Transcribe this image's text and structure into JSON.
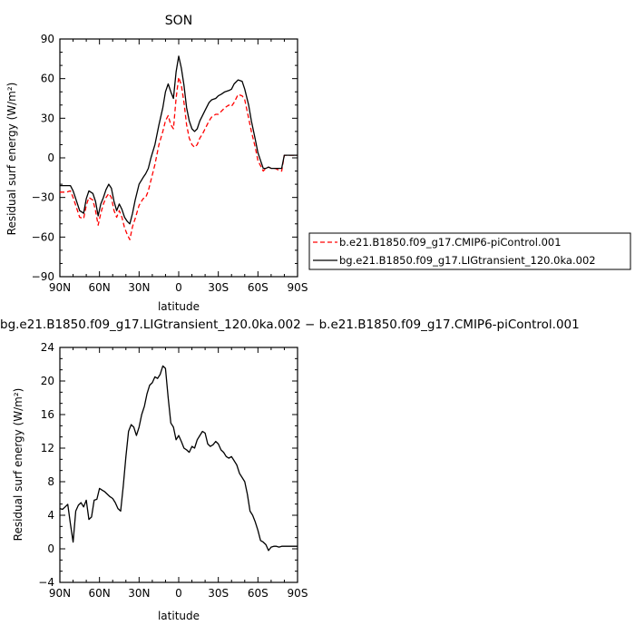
{
  "chart_data": [
    {
      "type": "line",
      "title": "SON",
      "xlabel": "latitude",
      "ylabel": "Residual surf energy (W/m²)",
      "xlim": [
        90,
        -90
      ],
      "ylim": [
        -90,
        90
      ],
      "xticks": [
        90,
        60,
        30,
        0,
        -30,
        -60,
        -90
      ],
      "xtick_labels": [
        "90N",
        "60N",
        "30N",
        "0",
        "30S",
        "60S",
        "90S"
      ],
      "yticks": [
        -90,
        -60,
        -30,
        0,
        30,
        60,
        90
      ],
      "ytick_labels": [
        "−90",
        "−60",
        "−30",
        "0",
        "30",
        "60",
        "90"
      ],
      "legend_position": "right",
      "series": [
        {
          "name": "b.e21.B1850.f09_g17.CMIP6-piControl.001",
          "color": "#ff0000",
          "dash": "dashed",
          "x": [
            90,
            85,
            82,
            80,
            78,
            75,
            72,
            70,
            68,
            65,
            63,
            61,
            59,
            57,
            55,
            53,
            51,
            49,
            47,
            45,
            43,
            41,
            39,
            37,
            35,
            33,
            30,
            27,
            25,
            23,
            21,
            18,
            15,
            12,
            10,
            8,
            6,
            4,
            2,
            0,
            -2,
            -4,
            -6,
            -8,
            -10,
            -12,
            -14,
            -16,
            -18,
            -20,
            -23,
            -25,
            -28,
            -30,
            -32,
            -35,
            -38,
            -40,
            -42,
            -45,
            -48,
            -50,
            -53,
            -55,
            -58,
            -60,
            -62,
            -64,
            -66,
            -68,
            -70,
            -73,
            -75,
            -78,
            -80,
            -82,
            -85,
            -88,
            -90
          ],
          "y": [
            -26,
            -26,
            -25,
            -30,
            -36,
            -45,
            -46,
            -36,
            -30,
            -32,
            -40,
            -51,
            -42,
            -35,
            -30,
            -27,
            -30,
            -40,
            -45,
            -40,
            -45,
            -53,
            -58,
            -62,
            -52,
            -46,
            -36,
            -31,
            -30,
            -25,
            -17,
            -5,
            10,
            20,
            28,
            32,
            25,
            22,
            45,
            61,
            55,
            42,
            25,
            15,
            10,
            8,
            10,
            15,
            18,
            22,
            28,
            31,
            33,
            33,
            35,
            38,
            40,
            39,
            42,
            48,
            47,
            44,
            30,
            20,
            8,
            -2,
            -6,
            -10,
            -8,
            -7,
            -8,
            -8,
            -9,
            -10,
            2,
            2,
            2,
            2,
            2
          ]
        },
        {
          "name": "bg.e21.B1850.f09_g17.LIGtransient_120.0ka.002",
          "color": "#000000",
          "dash": "solid",
          "x": [
            90,
            85,
            82,
            80,
            78,
            75,
            72,
            70,
            68,
            65,
            63,
            61,
            59,
            57,
            55,
            53,
            51,
            49,
            47,
            45,
            43,
            41,
            39,
            37,
            35,
            33,
            30,
            27,
            25,
            23,
            21,
            18,
            15,
            12,
            10,
            8,
            6,
            4,
            2,
            0,
            -2,
            -4,
            -6,
            -8,
            -10,
            -12,
            -14,
            -16,
            -18,
            -20,
            -23,
            -25,
            -28,
            -30,
            -32,
            -35,
            -38,
            -40,
            -42,
            -45,
            -48,
            -50,
            -53,
            -55,
            -58,
            -60,
            -62,
            -64,
            -66,
            -68,
            -70,
            -73,
            -75,
            -78,
            -80,
            -82,
            -85,
            -88,
            -90
          ],
          "y": [
            -21,
            -21,
            -21,
            -25,
            -31,
            -40,
            -42,
            -31,
            -25,
            -27,
            -33,
            -44,
            -35,
            -30,
            -24,
            -20,
            -23,
            -33,
            -40,
            -35,
            -39,
            -45,
            -48,
            -50,
            -42,
            -32,
            -20,
            -15,
            -12,
            -8,
            0,
            10,
            25,
            38,
            50,
            56,
            50,
            45,
            65,
            77,
            68,
            55,
            38,
            28,
            22,
            20,
            22,
            28,
            32,
            36,
            42,
            44,
            45,
            47,
            48,
            50,
            51,
            52,
            56,
            59,
            58,
            52,
            40,
            28,
            14,
            4,
            -2,
            -8,
            -8,
            -7,
            -8,
            -8,
            -8,
            -8,
            2,
            2,
            2,
            2,
            2
          ]
        }
      ]
    },
    {
      "type": "line",
      "title": "bg.e21.B1850.f09_g17.LIGtransient_120.0ka.002 − b.e21.B1850.f09_g17.CMIP6-piControl.001",
      "xlabel": "latitude",
      "ylabel": "Residual surf energy (W/m²)",
      "xlim": [
        90,
        -90
      ],
      "ylim": [
        -4,
        24
      ],
      "xticks": [
        90,
        60,
        30,
        0,
        -30,
        -60,
        -90
      ],
      "xtick_labels": [
        "90N",
        "60N",
        "30N",
        "0",
        "30S",
        "60S",
        "90S"
      ],
      "yticks": [
        -4,
        0,
        4,
        8,
        12,
        16,
        20,
        24
      ],
      "ytick_labels": [
        "−4",
        "0",
        "4",
        "8",
        "12",
        "16",
        "20",
        "24"
      ],
      "series": [
        {
          "name": "",
          "color": "#000000",
          "dash": "solid",
          "x": [
            90,
            88,
            86,
            84,
            82,
            80,
            78,
            76,
            74,
            72,
            70,
            68,
            66,
            64,
            62,
            60,
            58,
            56,
            54,
            52,
            50,
            48,
            46,
            44,
            42,
            40,
            38,
            36,
            34,
            32,
            30,
            28,
            26,
            24,
            22,
            20,
            18,
            16,
            14,
            12,
            10,
            8,
            6,
            4,
            2,
            0,
            -2,
            -4,
            -6,
            -8,
            -10,
            -12,
            -14,
            -16,
            -18,
            -20,
            -22,
            -24,
            -26,
            -28,
            -30,
            -32,
            -34,
            -36,
            -38,
            -40,
            -42,
            -44,
            -46,
            -48,
            -50,
            -52,
            -54,
            -56,
            -58,
            -60,
            -62,
            -64,
            -66,
            -68,
            -70,
            -72,
            -74,
            -76,
            -78,
            -80,
            -82,
            -84,
            -86,
            -88,
            -90
          ],
          "y": [
            4.8,
            4.7,
            5.0,
            5.3,
            3.0,
            0.8,
            4.5,
            5.2,
            5.5,
            5.0,
            5.8,
            3.5,
            3.8,
            5.8,
            5.9,
            7.2,
            7.0,
            6.8,
            6.5,
            6.2,
            6.0,
            5.5,
            4.8,
            4.5,
            7.5,
            11.0,
            14.0,
            14.8,
            14.5,
            13.5,
            14.5,
            16.0,
            17.0,
            18.5,
            19.5,
            19.8,
            20.5,
            20.3,
            20.8,
            21.8,
            21.5,
            18.0,
            15.0,
            14.5,
            13.0,
            13.5,
            12.8,
            12.0,
            11.8,
            11.5,
            12.2,
            12.0,
            13.0,
            13.5,
            14.0,
            13.8,
            12.5,
            12.2,
            12.4,
            12.8,
            12.5,
            11.8,
            11.5,
            11.0,
            10.8,
            11.0,
            10.5,
            10.0,
            9.0,
            8.5,
            8.0,
            6.5,
            4.5,
            4.0,
            3.2,
            2.2,
            1.0,
            0.8,
            0.5,
            -0.2,
            0.2,
            0.3,
            0.3,
            0.2,
            0.3,
            0.3,
            0.3,
            0.3,
            0.3,
            0.3,
            0.3
          ]
        }
      ]
    }
  ]
}
